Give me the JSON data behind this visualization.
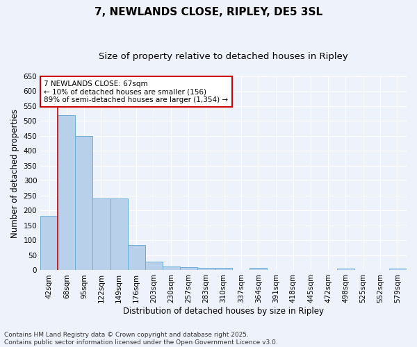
{
  "title": "7, NEWLANDS CLOSE, RIPLEY, DE5 3SL",
  "subtitle": "Size of property relative to detached houses in Ripley",
  "xlabel": "Distribution of detached houses by size in Ripley",
  "ylabel": "Number of detached properties",
  "categories": [
    "42sqm",
    "68sqm",
    "95sqm",
    "122sqm",
    "149sqm",
    "176sqm",
    "203sqm",
    "230sqm",
    "257sqm",
    "283sqm",
    "310sqm",
    "337sqm",
    "364sqm",
    "391sqm",
    "418sqm",
    "445sqm",
    "472sqm",
    "498sqm",
    "525sqm",
    "552sqm",
    "579sqm"
  ],
  "values": [
    183,
    520,
    449,
    240,
    240,
    85,
    30,
    13,
    10,
    8,
    8,
    0,
    8,
    0,
    0,
    0,
    0,
    5,
    0,
    0,
    5
  ],
  "bar_color": "#b8d0ea",
  "bar_edge_color": "#6aaed6",
  "vline_x": 0.5,
  "vline_color": "#cc0000",
  "annotation_text": "7 NEWLANDS CLOSE: 67sqm\n← 10% of detached houses are smaller (156)\n89% of semi-detached houses are larger (1,354) →",
  "annotation_box_color": "#ffffff",
  "annotation_box_edge": "#cc0000",
  "ylim": [
    0,
    650
  ],
  "yticks": [
    0,
    50,
    100,
    150,
    200,
    250,
    300,
    350,
    400,
    450,
    500,
    550,
    600,
    650
  ],
  "bg_color": "#eef2fa",
  "grid_color": "#ffffff",
  "footer": "Contains HM Land Registry data © Crown copyright and database right 2025.\nContains public sector information licensed under the Open Government Licence v3.0.",
  "title_fontsize": 11,
  "subtitle_fontsize": 9.5,
  "axis_label_fontsize": 8.5,
  "tick_fontsize": 7.5,
  "annotation_fontsize": 7.5,
  "footer_fontsize": 6.5
}
